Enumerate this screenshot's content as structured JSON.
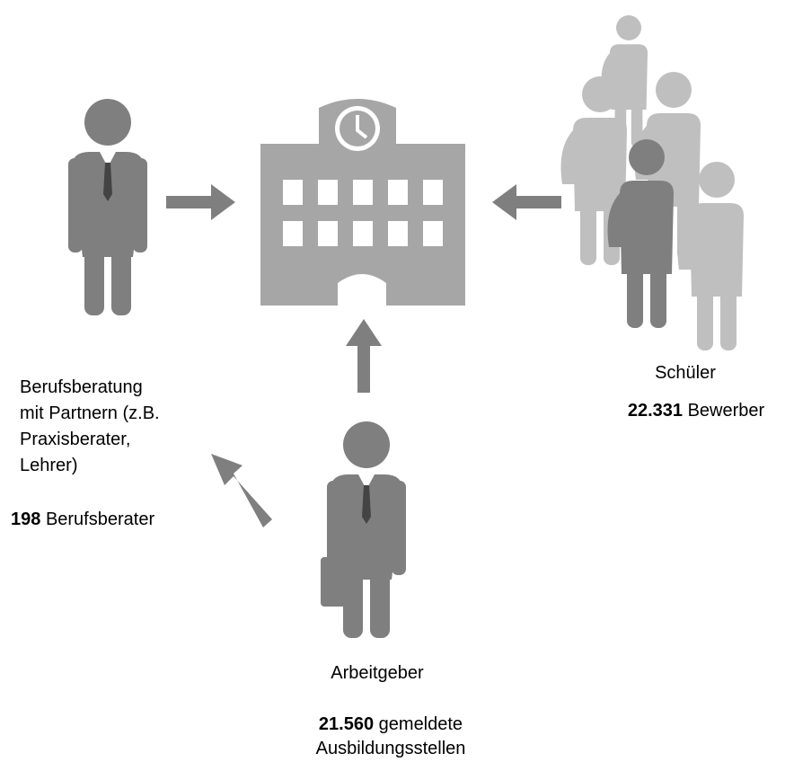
{
  "nodes": [
    {
      "label": [
        "Berufsberatung",
        "mit Partnern (z.B.",
        "Praxisberater,",
        "Lehrer)"
      ],
      "count": "198",
      "unit": [
        "Berufsberater"
      ]
    },
    {
      "label": [
        "Schüler"
      ],
      "count": "22.331",
      "unit": [
        "Bewerber"
      ]
    },
    {
      "label": [
        "Arbeitgeber"
      ],
      "count": "21.560",
      "unit": [
        "gemeldete",
        "Ausbildungsstellen"
      ]
    }
  ]
}
